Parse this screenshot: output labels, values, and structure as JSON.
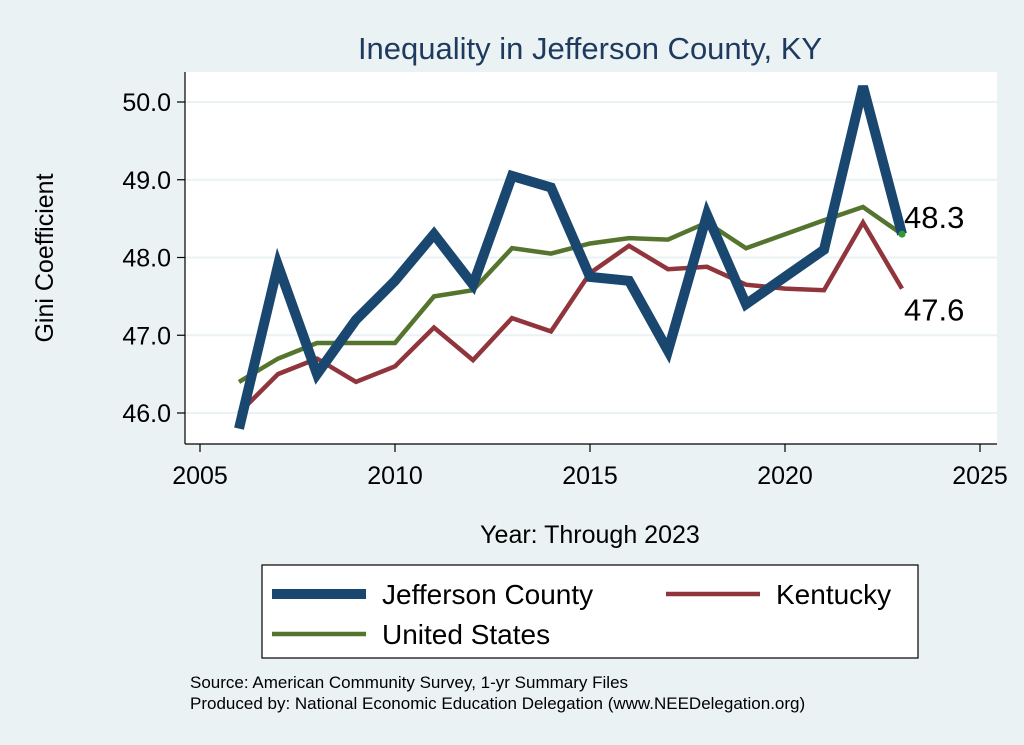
{
  "chart_data": {
    "type": "line",
    "title": "Inequality in Jefferson County, KY",
    "xlabel": "Year: Through 2023",
    "ylabel": "Gini Coefficient",
    "xlim": [
      2005,
      2025
    ],
    "ylim": [
      45.8,
      50.3
    ],
    "xticks": [
      2005,
      2010,
      2015,
      2020,
      2025
    ],
    "yticks": [
      46.0,
      47.0,
      48.0,
      49.0,
      50.0
    ],
    "grid": true,
    "legend_position": "bottom",
    "x": [
      2006,
      2007,
      2008,
      2009,
      2010,
      2011,
      2012,
      2013,
      2014,
      2015,
      2016,
      2017,
      2018,
      2019,
      2020,
      2021,
      2022,
      2023
    ],
    "series": [
      {
        "name": "Jefferson County",
        "color": "#1a476f",
        "values": [
          45.8,
          47.9,
          46.5,
          47.2,
          47.7,
          48.3,
          47.65,
          49.05,
          48.9,
          47.75,
          47.7,
          46.8,
          48.55,
          47.4,
          47.75,
          48.1,
          50.2,
          48.3
        ]
      },
      {
        "name": "Kentucky",
        "color": "#90353b",
        "values": [
          46.0,
          46.5,
          46.7,
          46.4,
          46.6,
          47.1,
          46.68,
          47.22,
          47.05,
          47.8,
          48.15,
          47.85,
          47.88,
          47.65,
          47.6,
          47.58,
          48.45,
          47.6
        ]
      },
      {
        "name": "United States",
        "color": "#55752f",
        "values": [
          46.4,
          46.7,
          46.9,
          46.9,
          46.9,
          47.5,
          47.58,
          48.12,
          48.05,
          48.18,
          48.25,
          48.23,
          48.45,
          48.12,
          48.3,
          48.48,
          48.65,
          48.3
        ]
      }
    ],
    "end_labels": [
      {
        "series": "Jefferson County",
        "text": "48.3"
      },
      {
        "series": "Kentucky",
        "text": "47.6"
      }
    ],
    "source_note": "Source: American Community Survey, 1-yr Summary Files",
    "producer_note": "Produced by: National Economic Education Delegation (www.NEEDelegation.org)"
  }
}
